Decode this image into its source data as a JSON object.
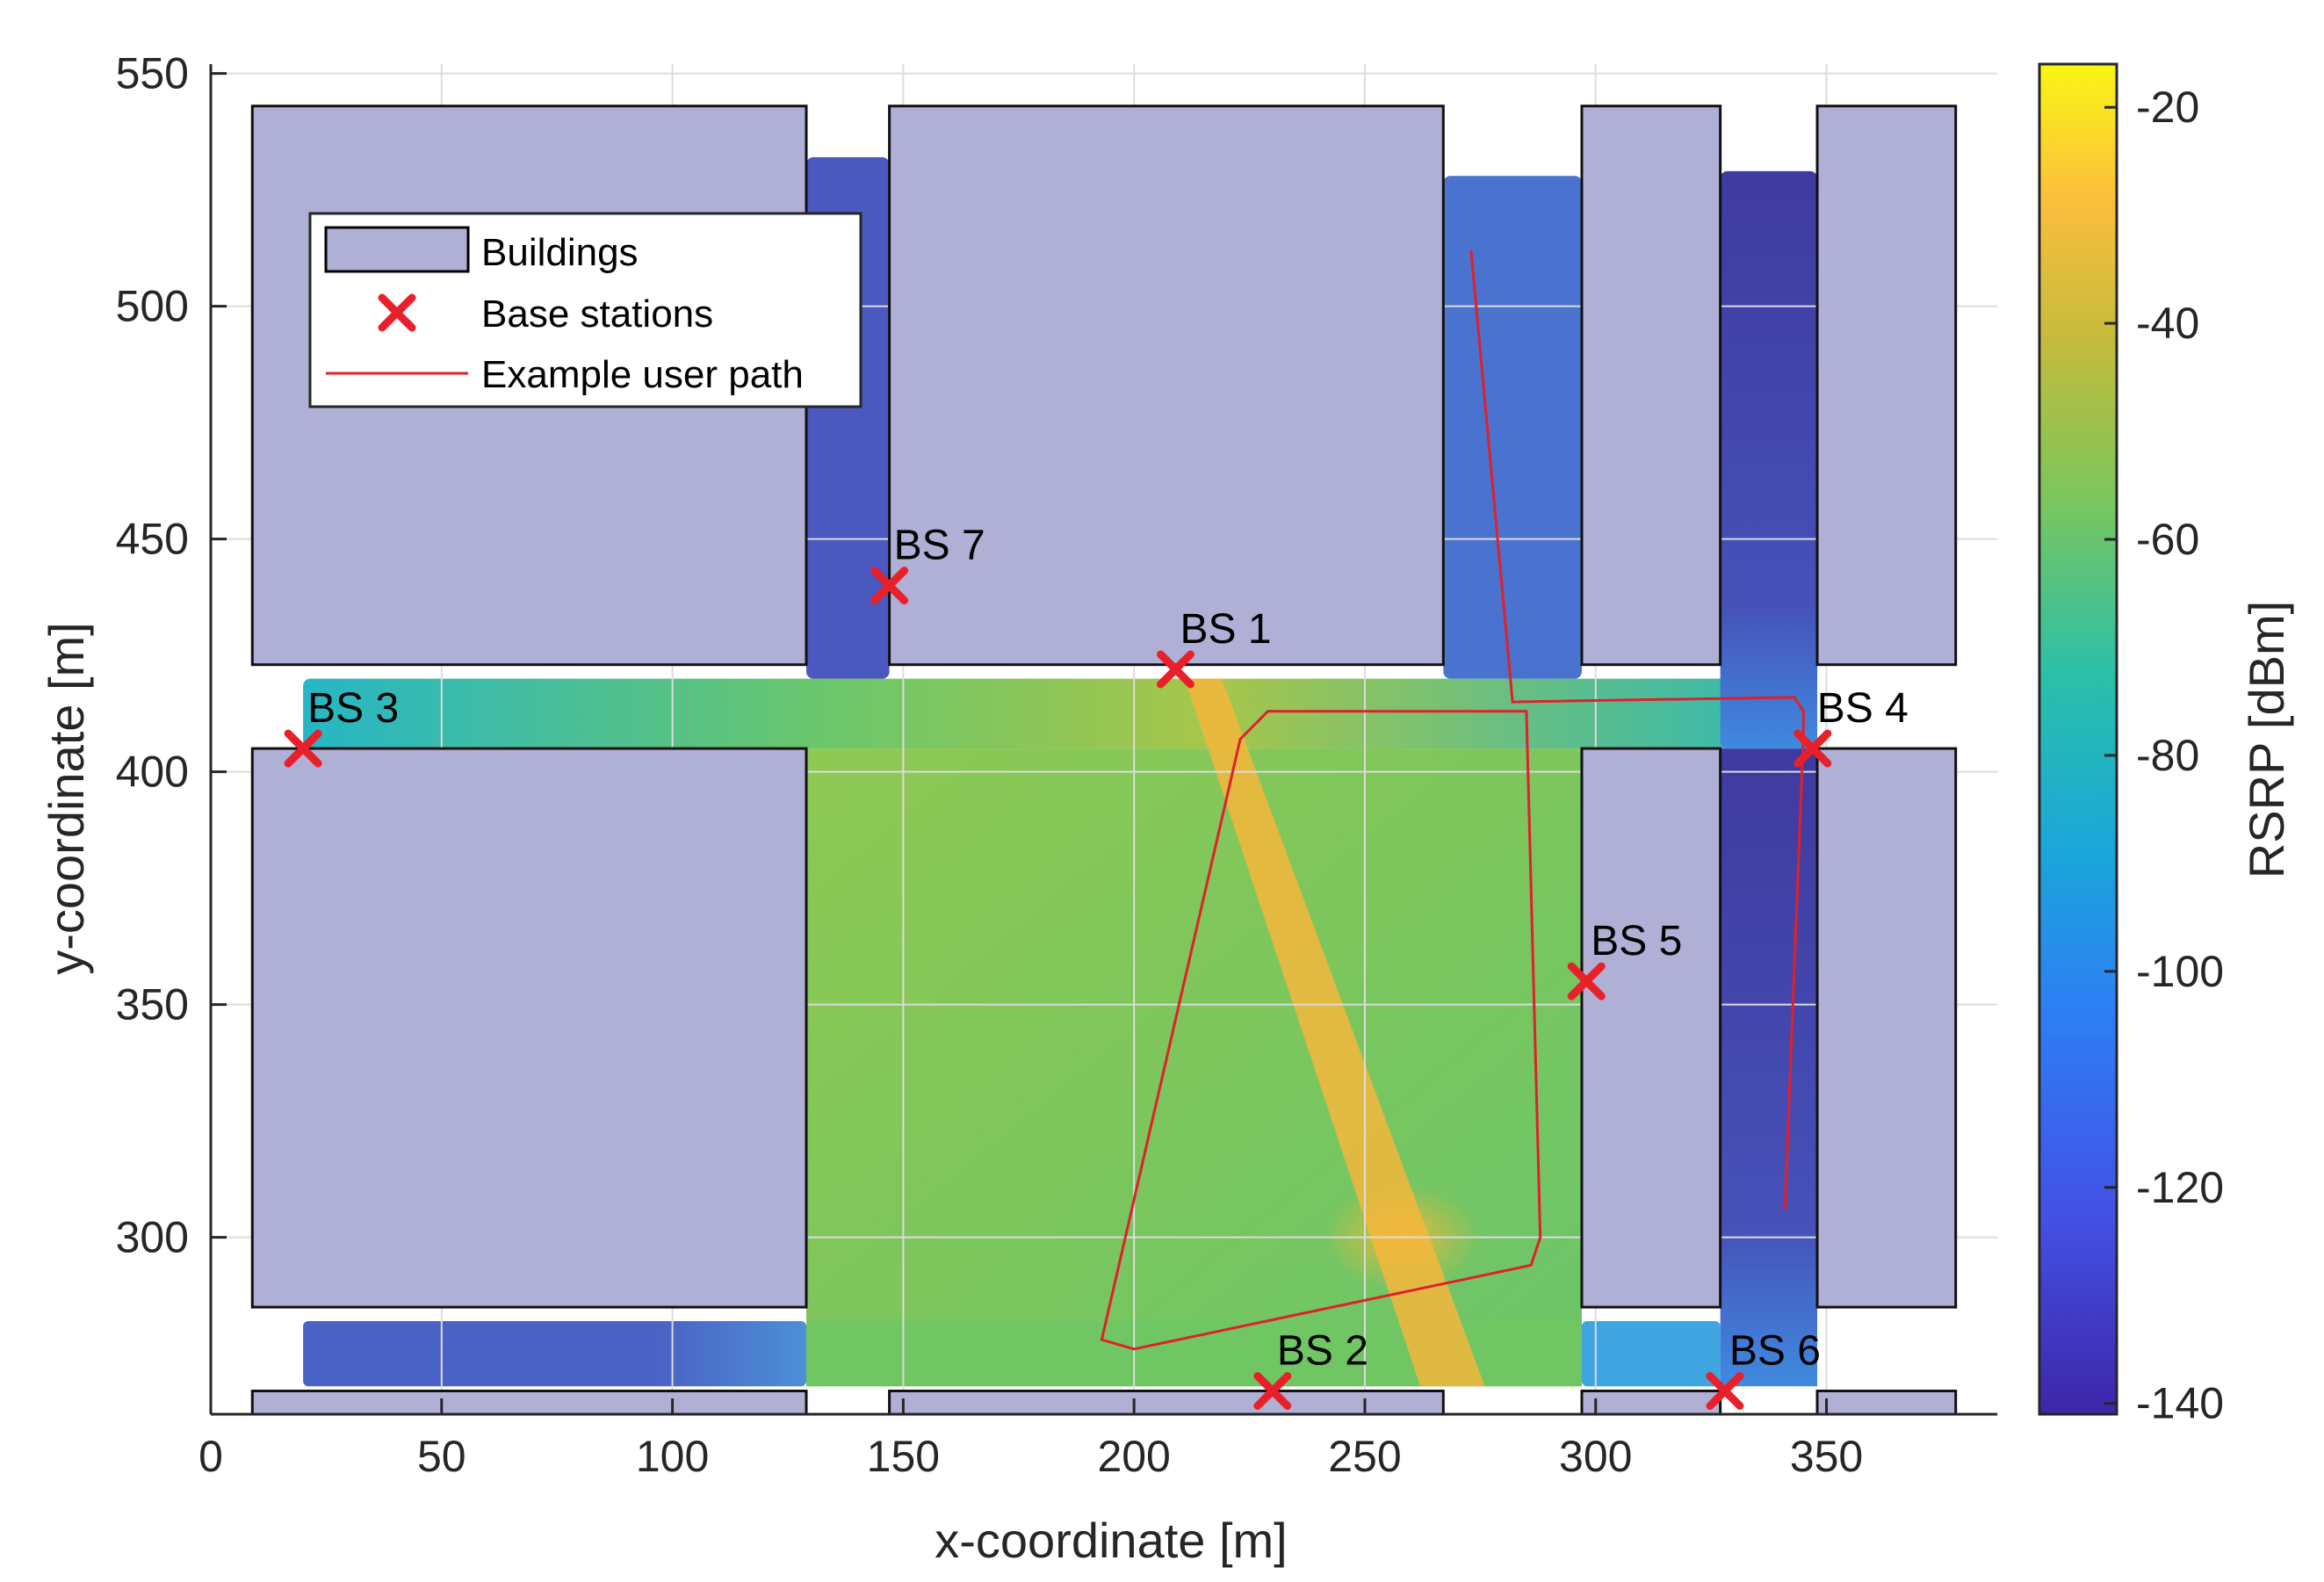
{
  "chart_data": {
    "type": "heatmap",
    "title": "",
    "xlabel": "x-coordinate [m]",
    "ylabel": "y-coordinate [m]",
    "xlim": [
      0,
      387
    ],
    "ylim": [
      262,
      552
    ],
    "xticks": [
      "0",
      "50",
      "100",
      "150",
      "200",
      "250",
      "300",
      "350"
    ],
    "yticks": [
      "300",
      "350",
      "400",
      "450",
      "500",
      "550"
    ],
    "grid": true,
    "colorbar": {
      "label": "RSRP [dBm]",
      "range": [
        -141,
        -16
      ],
      "ticks": [
        "-20",
        "-40",
        "-60",
        "-80",
        "-100",
        "-120",
        "-140"
      ],
      "colormap": "parula"
    },
    "legend": {
      "placement": "top-left",
      "entries": [
        "Buildings",
        "Base stations",
        "Example user path"
      ]
    },
    "buildings": [
      {
        "x0": 9,
        "x1": 129,
        "y0": 423,
        "y1": 543
      },
      {
        "x0": 147,
        "x1": 267,
        "y0": 423,
        "y1": 543
      },
      {
        "x0": 297,
        "x1": 327,
        "y0": 423,
        "y1": 543
      },
      {
        "x0": 348,
        "x1": 378,
        "y0": 423,
        "y1": 543
      },
      {
        "x0": 9,
        "x1": 129,
        "y0": 285,
        "y1": 405
      },
      {
        "x0": 297,
        "x1": 327,
        "y0": 285,
        "y1": 405
      },
      {
        "x0": 348,
        "x1": 378,
        "y0": 285,
        "y1": 405
      },
      {
        "x0": 9,
        "x1": 129,
        "y0": 262,
        "y1": 267
      },
      {
        "x0": 147,
        "x1": 267,
        "y0": 262,
        "y1": 267
      },
      {
        "x0": 297,
        "x1": 327,
        "y0": 262,
        "y1": 267
      },
      {
        "x0": 348,
        "x1": 378,
        "y0": 262,
        "y1": 267
      }
    ],
    "base_stations": [
      {
        "name": "BS 1",
        "x": 209,
        "y": 422
      },
      {
        "name": "BS 2",
        "x": 230,
        "y": 267
      },
      {
        "name": "BS 3",
        "x": 20,
        "y": 405
      },
      {
        "name": "BS 4",
        "x": 347,
        "y": 405
      },
      {
        "name": "BS 5",
        "x": 298,
        "y": 355
      },
      {
        "name": "BS 6",
        "x": 328,
        "y": 267
      },
      {
        "name": "BS 7",
        "x": 147,
        "y": 440
      }
    ],
    "user_path": [
      [
        273,
        512
      ],
      [
        282,
        415
      ],
      [
        343,
        416
      ],
      [
        345,
        413
      ],
      [
        345,
        408
      ],
      [
        341,
        306
      ]
    ],
    "user_path_loop": [
      [
        229,
        413
      ],
      [
        285,
        413
      ],
      [
        288,
        300
      ],
      [
        286,
        294
      ],
      [
        200,
        276
      ],
      [
        193,
        278
      ],
      [
        223,
        407
      ]
    ],
    "colors": {
      "buildings_fill": "#b0b0d6",
      "base_station": "#e8202a",
      "path": "#e0202a"
    }
  }
}
